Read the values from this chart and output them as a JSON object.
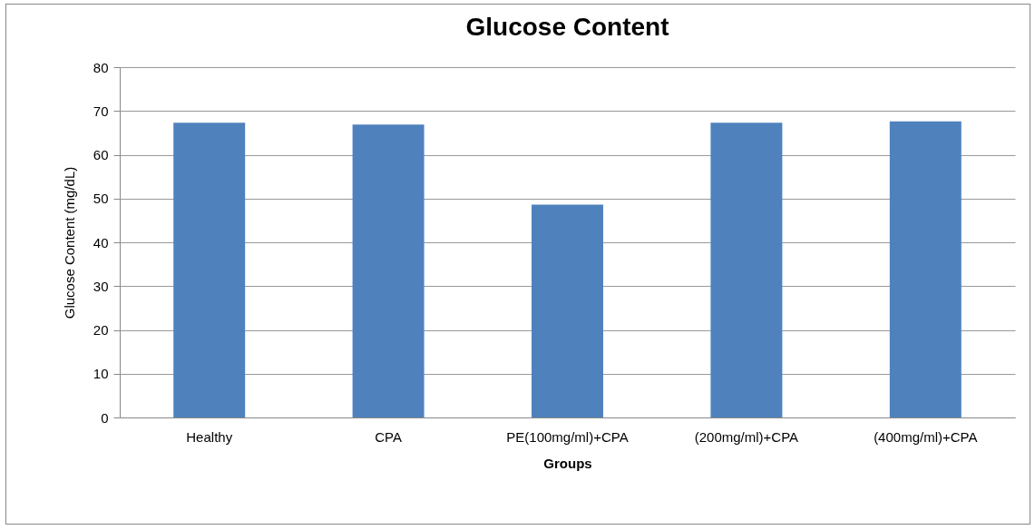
{
  "chart_data": {
    "type": "bar",
    "title": "Glucose Content",
    "xlabel": "Groups",
    "ylabel": "Glucose Content (mg/dL)",
    "categories": [
      "Healthy",
      "CPA",
      "PE(100mg/ml)+CPA",
      "(200mg/ml)+CPA",
      "(400mg/ml)+CPA"
    ],
    "values": [
      67.3,
      66.9,
      48.6,
      67.3,
      67.6
    ],
    "color": "#4f81bd",
    "ylim": [
      0,
      80
    ],
    "yticks": [
      0,
      10,
      20,
      30,
      40,
      50,
      60,
      70,
      80
    ],
    "grid": "y"
  }
}
